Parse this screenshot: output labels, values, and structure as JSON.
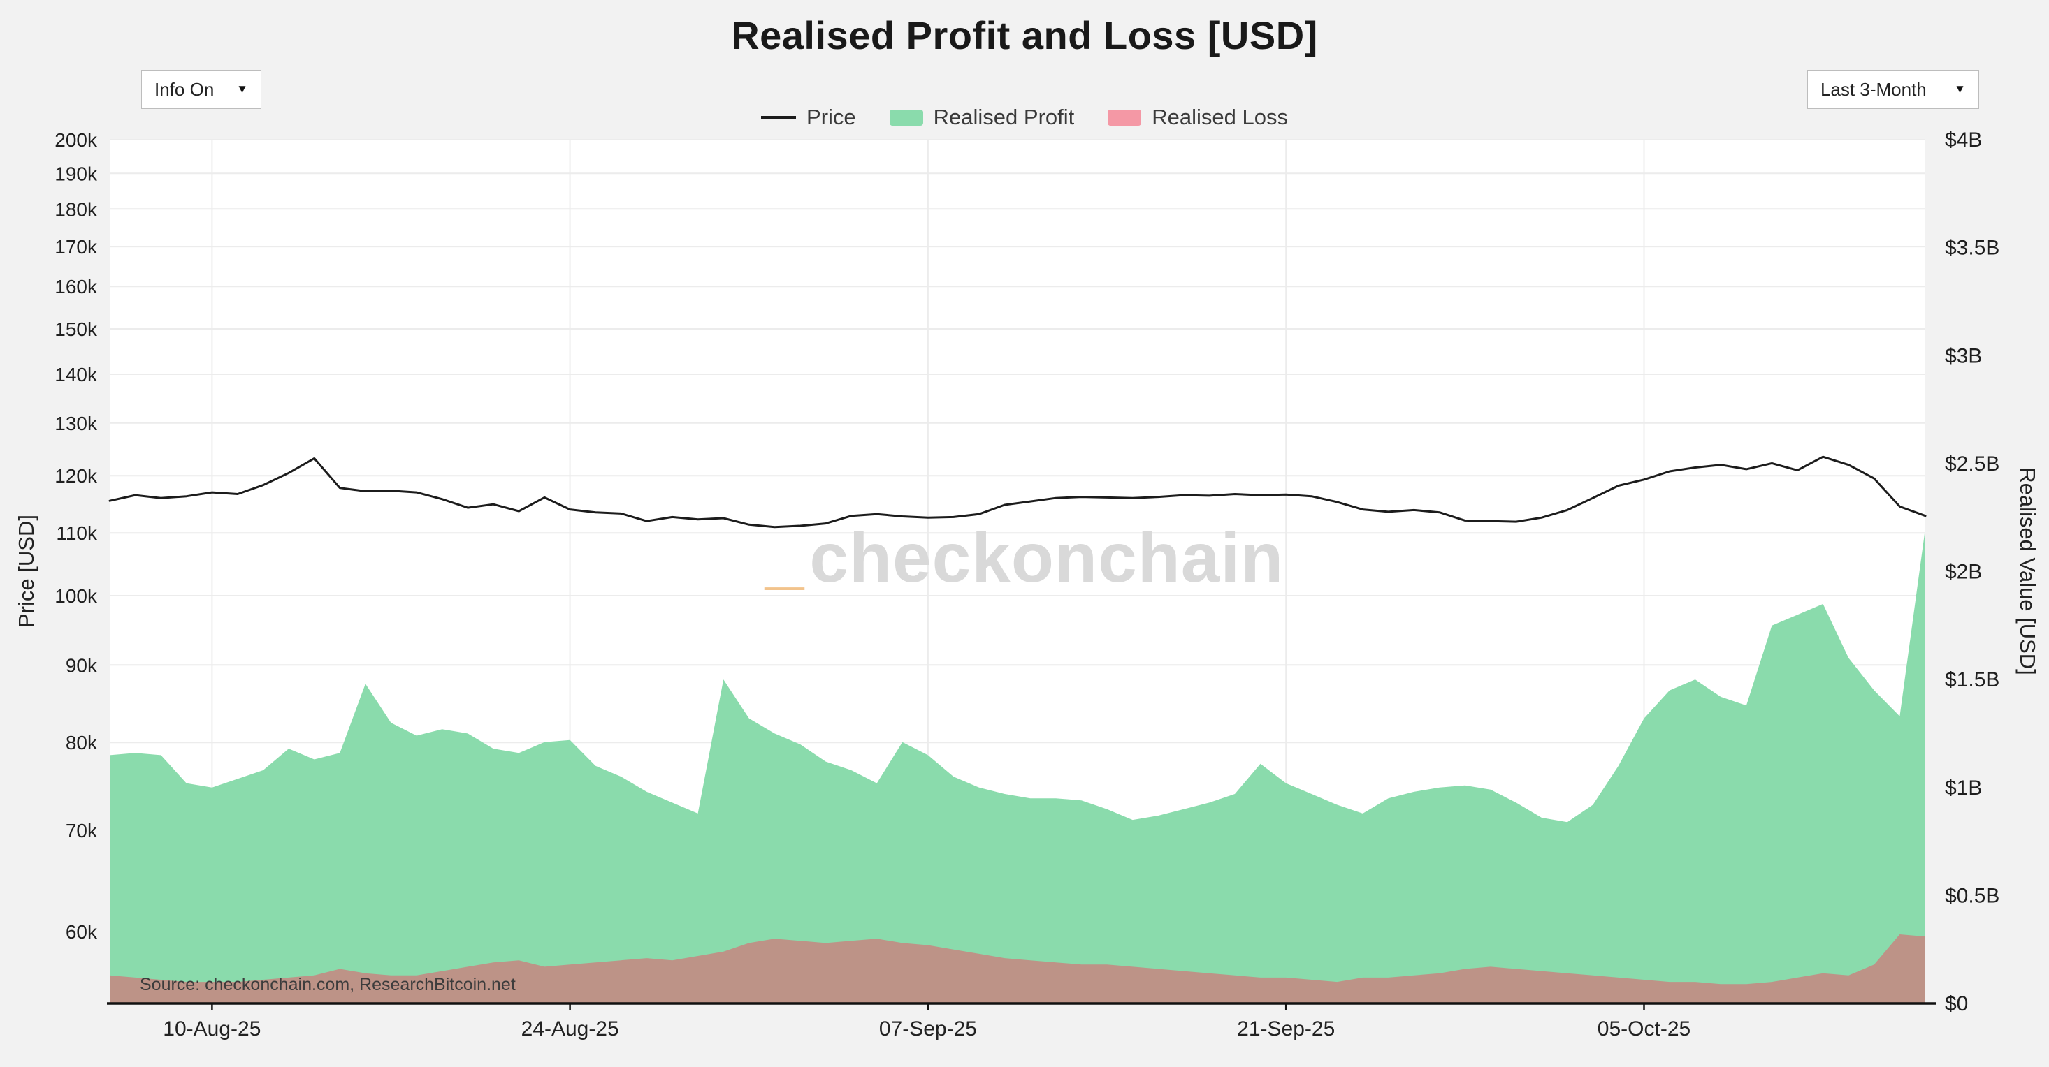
{
  "title": "Realised Profit and Loss [USD]",
  "controls": {
    "info_dropdown": {
      "label": "Info On",
      "caret": "▼"
    },
    "range_dropdown": {
      "label": "Last 3-Month",
      "caret": "▼"
    }
  },
  "legend": [
    {
      "label": "Price",
      "type": "line",
      "color": "#1c1c1c"
    },
    {
      "label": "Realised Profit",
      "type": "area",
      "color": "#8adbac"
    },
    {
      "label": "Realised Loss",
      "type": "area",
      "color": "#f498a5"
    }
  ],
  "watermark": {
    "underscore": "_",
    "text": "checkonchain"
  },
  "source_note": "Source: checkonchain.com, ResearchBitcoin.net",
  "chart_data": {
    "type": "area+line",
    "title": "Realised Profit and Loss [USD]",
    "grid": true,
    "legend_position": "top-center",
    "left_axis": {
      "title": "Price [USD]",
      "scale": "log",
      "unit": "thousand USD",
      "ticks": [
        "200k",
        "190k",
        "180k",
        "170k",
        "160k",
        "150k",
        "140k",
        "130k",
        "120k",
        "110k",
        "100k",
        "90k",
        "80k",
        "70k",
        "60k"
      ],
      "tick_values_k": [
        200,
        190,
        180,
        170,
        160,
        150,
        140,
        130,
        120,
        110,
        100,
        90,
        80,
        70,
        60
      ],
      "range_k": [
        53.8,
        200
      ]
    },
    "right_axis": {
      "title": "Realised Value [USD]",
      "scale": "linear",
      "unit": "billion USD",
      "ticks": [
        "$0",
        "$0.5B",
        "$1B",
        "$1.5B",
        "$2B",
        "$2.5B",
        "$3B",
        "$3.5B",
        "$4B"
      ],
      "tick_values_b": [
        0,
        0.5,
        1,
        1.5,
        2,
        2.5,
        3,
        3.5,
        4
      ],
      "range_b": [
        0,
        4
      ]
    },
    "x_ticks": [
      "10-Aug-25",
      "24-Aug-25",
      "07-Sep-25",
      "21-Sep-25",
      "05-Oct-25"
    ],
    "dates": [
      "06-Aug-25",
      "07-Aug-25",
      "08-Aug-25",
      "09-Aug-25",
      "10-Aug-25",
      "11-Aug-25",
      "12-Aug-25",
      "13-Aug-25",
      "14-Aug-25",
      "15-Aug-25",
      "16-Aug-25",
      "17-Aug-25",
      "18-Aug-25",
      "19-Aug-25",
      "20-Aug-25",
      "21-Aug-25",
      "22-Aug-25",
      "23-Aug-25",
      "24-Aug-25",
      "25-Aug-25",
      "26-Aug-25",
      "27-Aug-25",
      "28-Aug-25",
      "29-Aug-25",
      "30-Aug-25",
      "31-Aug-25",
      "01-Sep-25",
      "02-Sep-25",
      "03-Sep-25",
      "04-Sep-25",
      "05-Sep-25",
      "06-Sep-25",
      "07-Sep-25",
      "08-Sep-25",
      "09-Sep-25",
      "10-Sep-25",
      "11-Sep-25",
      "12-Sep-25",
      "13-Sep-25",
      "14-Sep-25",
      "15-Sep-25",
      "16-Sep-25",
      "17-Sep-25",
      "18-Sep-25",
      "19-Sep-25",
      "20-Sep-25",
      "21-Sep-25",
      "22-Sep-25",
      "23-Sep-25",
      "24-Sep-25",
      "25-Sep-25",
      "26-Sep-25",
      "27-Sep-25",
      "28-Sep-25",
      "29-Sep-25",
      "30-Sep-25",
      "01-Oct-25",
      "02-Oct-25",
      "03-Oct-25",
      "04-Oct-25",
      "05-Oct-25",
      "06-Oct-25",
      "07-Oct-25",
      "08-Oct-25",
      "09-Oct-25",
      "10-Oct-25",
      "11-Oct-25",
      "12-Oct-25",
      "13-Oct-25",
      "14-Oct-25",
      "15-Oct-25",
      "16-Oct-25"
    ],
    "series": [
      {
        "name": "Price",
        "axis": "left",
        "type": "line",
        "color": "#1c1c1c",
        "values_k_usd": [
          115.5,
          116.5,
          116.0,
          116.3,
          117.0,
          116.7,
          118.3,
          120.5,
          123.2,
          117.8,
          117.2,
          117.3,
          117.0,
          115.8,
          114.3,
          114.9,
          113.7,
          116.1,
          114.0,
          113.5,
          113.3,
          112.0,
          112.7,
          112.3,
          112.5,
          111.4,
          111.0,
          111.2,
          111.6,
          112.9,
          113.2,
          112.8,
          112.6,
          112.7,
          113.2,
          114.8,
          115.4,
          116.0,
          116.2,
          116.1,
          116.0,
          116.2,
          116.5,
          116.4,
          116.7,
          116.5,
          116.6,
          116.3,
          115.3,
          114.0,
          113.6,
          113.9,
          113.5,
          112.1,
          112.0,
          111.9,
          112.6,
          113.9,
          116.0,
          118.2,
          119.3,
          120.8,
          121.5,
          122.0,
          121.2,
          122.3,
          121.0,
          123.5,
          122.0,
          119.5,
          114.5,
          112.9
        ]
      },
      {
        "name": "Realised Profit",
        "axis": "right",
        "type": "area",
        "color": "#8adbac",
        "values_b_usd": [
          1.15,
          1.16,
          1.15,
          1.02,
          1.0,
          1.04,
          1.08,
          1.18,
          1.13,
          1.16,
          1.48,
          1.3,
          1.24,
          1.27,
          1.25,
          1.18,
          1.16,
          1.21,
          1.22,
          1.1,
          1.05,
          0.98,
          0.93,
          0.88,
          1.5,
          1.32,
          1.25,
          1.2,
          1.12,
          1.08,
          1.02,
          1.21,
          1.15,
          1.05,
          1.0,
          0.97,
          0.95,
          0.95,
          0.94,
          0.9,
          0.85,
          0.87,
          0.9,
          0.93,
          0.97,
          1.11,
          1.02,
          0.97,
          0.92,
          0.88,
          0.95,
          0.98,
          1.0,
          1.01,
          0.99,
          0.93,
          0.86,
          0.84,
          0.92,
          1.1,
          1.32,
          1.45,
          1.5,
          1.42,
          1.38,
          1.75,
          1.8,
          1.85,
          1.6,
          1.45,
          1.33,
          2.2
        ]
      },
      {
        "name": "Realised Loss",
        "axis": "right",
        "type": "area",
        "color": "rgba(223,99,110,0.6)",
        "values_b_usd": [
          0.13,
          0.12,
          0.11,
          0.1,
          0.1,
          0.1,
          0.11,
          0.12,
          0.13,
          0.16,
          0.14,
          0.13,
          0.13,
          0.15,
          0.17,
          0.19,
          0.2,
          0.17,
          0.18,
          0.19,
          0.2,
          0.21,
          0.2,
          0.22,
          0.24,
          0.28,
          0.3,
          0.29,
          0.28,
          0.29,
          0.3,
          0.28,
          0.27,
          0.25,
          0.23,
          0.21,
          0.2,
          0.19,
          0.18,
          0.18,
          0.17,
          0.16,
          0.15,
          0.14,
          0.13,
          0.12,
          0.12,
          0.11,
          0.1,
          0.12,
          0.12,
          0.13,
          0.14,
          0.16,
          0.17,
          0.16,
          0.15,
          0.14,
          0.13,
          0.12,
          0.11,
          0.1,
          0.1,
          0.09,
          0.09,
          0.1,
          0.12,
          0.14,
          0.13,
          0.18,
          0.32,
          0.31
        ]
      }
    ]
  }
}
